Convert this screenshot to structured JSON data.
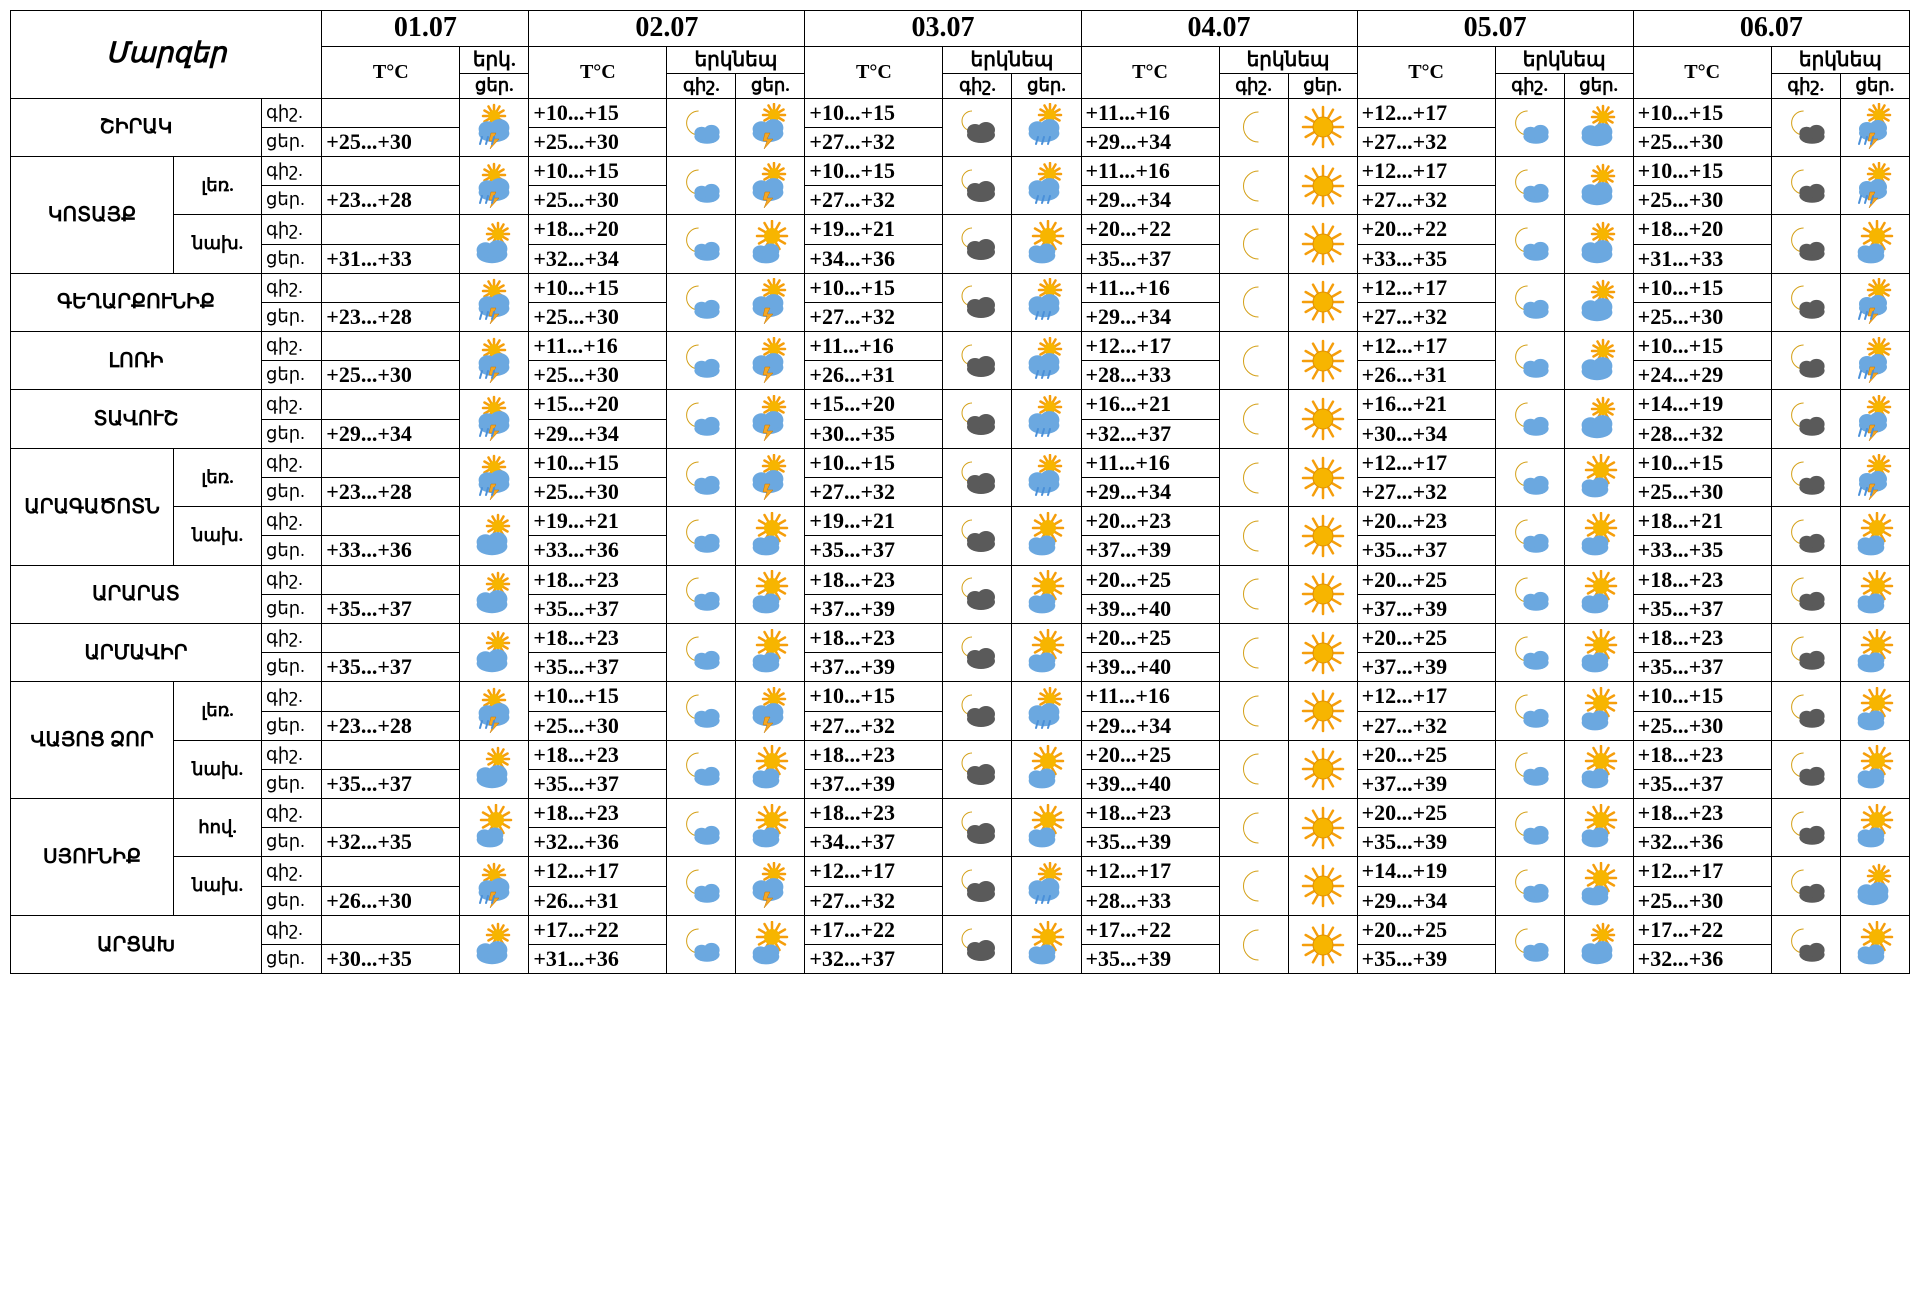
{
  "header": {
    "regions_label": "Մարզեր",
    "dates": [
      "01.07",
      "02.07",
      "03.07",
      "04.07",
      "05.07",
      "06.07"
    ],
    "tc_label": "T°C",
    "erk_short": "երկ.",
    "erk_full": "երկնեպ",
    "sub_night": "գիշ.",
    "sub_day": "ցեր."
  },
  "labels": {
    "tod_night": "գիշ.",
    "tod_day": "ցեր.",
    "sub_mount": "լեռ.",
    "sub_low": "նախ.",
    "sub_valley": "հով."
  },
  "icons": {
    "storm": "storm",
    "moon_cloud": "moon_cloud",
    "sun_storm": "sun_storm",
    "dark_cloud": "dark_cloud",
    "sun_cloud_rain": "sun_cloud_rain",
    "moon": "moon",
    "sun": "sun",
    "sun_cloud": "sun_cloud",
    "moon_dark": "moon_dark",
    "sun_rain": "sun_rain",
    "sun_partly": "sun_partly"
  },
  "colors": {
    "sun": "#f7b500",
    "sun_ray": "#f59e0b",
    "moon": "#f5c542",
    "cloud_light": "#6ba8e0",
    "cloud_dark": "#5a5a5a",
    "cloud_grey": "#888888",
    "bolt": "#f5a623",
    "rain": "#4a90d9"
  },
  "rows": [
    {
      "region": "ՇԻՐԱԿ",
      "sub": null,
      "d": [
        {
          "n": "",
          "dy": "+25...+30",
          "in": "",
          "id": "storm"
        },
        {
          "n": "+10...+15",
          "dy": "+25...+30",
          "in": "moon_cloud",
          "id": "sun_storm"
        },
        {
          "n": "+10...+15",
          "dy": "+27...+32",
          "in": "dark_cloud",
          "id": "sun_cloud_rain"
        },
        {
          "n": "+11...+16",
          "dy": "+29...+34",
          "in": "moon",
          "id": "sun"
        },
        {
          "n": "+12...+17",
          "dy": "+27...+32",
          "in": "moon_cloud",
          "id": "sun_cloud"
        },
        {
          "n": "+10...+15",
          "dy": "+25...+30",
          "in": "moon_dark",
          "id": "sun_rain"
        }
      ]
    },
    {
      "region": "ԿՈՏԱՅՔ",
      "sub": "լեռ.",
      "region_rows": 2,
      "d": [
        {
          "n": "",
          "dy": "+23...+28",
          "in": "",
          "id": "storm"
        },
        {
          "n": "+10...+15",
          "dy": "+25...+30",
          "in": "moon_cloud",
          "id": "sun_storm"
        },
        {
          "n": "+10...+15",
          "dy": "+27...+32",
          "in": "dark_cloud",
          "id": "sun_cloud_rain"
        },
        {
          "n": "+11...+16",
          "dy": "+29...+34",
          "in": "moon",
          "id": "sun"
        },
        {
          "n": "+12...+17",
          "dy": "+27...+32",
          "in": "moon_cloud",
          "id": "sun_cloud"
        },
        {
          "n": "+10...+15",
          "dy": "+25...+30",
          "in": "moon_dark",
          "id": "sun_rain"
        }
      ]
    },
    {
      "region": null,
      "sub": "նախ.",
      "d": [
        {
          "n": "",
          "dy": "+31...+33",
          "in": "",
          "id": "sun_cloud"
        },
        {
          "n": "+18...+20",
          "dy": "+32...+34",
          "in": "moon_cloud",
          "id": "sun_partly"
        },
        {
          "n": "+19...+21",
          "dy": "+34...+36",
          "in": "dark_cloud",
          "id": "sun_partly"
        },
        {
          "n": "+20...+22",
          "dy": "+35...+37",
          "in": "moon",
          "id": "sun"
        },
        {
          "n": "+20...+22",
          "dy": "+33...+35",
          "in": "moon_cloud",
          "id": "sun_cloud"
        },
        {
          "n": "+18...+20",
          "dy": "+31...+33",
          "in": "moon_dark",
          "id": "sun_partly"
        }
      ]
    },
    {
      "region": "ԳԵՂԱՐՔՈՒՆԻՔ",
      "sub": null,
      "d": [
        {
          "n": "",
          "dy": "+23...+28",
          "in": "",
          "id": "storm"
        },
        {
          "n": "+10...+15",
          "dy": "+25...+30",
          "in": "moon_cloud",
          "id": "sun_storm"
        },
        {
          "n": "+10...+15",
          "dy": "+27...+32",
          "in": "dark_cloud",
          "id": "sun_cloud_rain"
        },
        {
          "n": "+11...+16",
          "dy": "+29...+34",
          "in": "moon",
          "id": "sun"
        },
        {
          "n": "+12...+17",
          "dy": "+27...+32",
          "in": "moon_cloud",
          "id": "sun_cloud"
        },
        {
          "n": "+10...+15",
          "dy": "+25...+30",
          "in": "moon_dark",
          "id": "sun_rain"
        }
      ]
    },
    {
      "region": "ԼՈՌԻ",
      "sub": null,
      "d": [
        {
          "n": "",
          "dy": "+25...+30",
          "in": "",
          "id": "storm"
        },
        {
          "n": "+11...+16",
          "dy": "+25...+30",
          "in": "moon_cloud",
          "id": "sun_storm"
        },
        {
          "n": "+11...+16",
          "dy": "+26...+31",
          "in": "dark_cloud",
          "id": "sun_cloud_rain"
        },
        {
          "n": "+12...+17",
          "dy": "+28...+33",
          "in": "moon",
          "id": "sun"
        },
        {
          "n": "+12...+17",
          "dy": "+26...+31",
          "in": "moon_cloud",
          "id": "sun_cloud"
        },
        {
          "n": "+10...+15",
          "dy": "+24...+29",
          "in": "moon_dark",
          "id": "sun_rain"
        }
      ]
    },
    {
      "region": "ՏԱՎՈՒՇ",
      "sub": null,
      "d": [
        {
          "n": "",
          "dy": "+29...+34",
          "in": "",
          "id": "storm"
        },
        {
          "n": "+15...+20",
          "dy": "+29...+34",
          "in": "moon_cloud",
          "id": "sun_storm"
        },
        {
          "n": "+15...+20",
          "dy": "+30...+35",
          "in": "dark_cloud",
          "id": "sun_cloud_rain"
        },
        {
          "n": "+16...+21",
          "dy": "+32...+37",
          "in": "moon",
          "id": "sun"
        },
        {
          "n": "+16...+21",
          "dy": "+30...+34",
          "in": "moon_cloud",
          "id": "sun_cloud"
        },
        {
          "n": "+14...+19",
          "dy": "+28...+32",
          "in": "moon_dark",
          "id": "sun_rain"
        }
      ]
    },
    {
      "region": "ԱՐԱԳԱԾՈՏՆ",
      "sub": "լեռ.",
      "region_rows": 2,
      "d": [
        {
          "n": "",
          "dy": "+23...+28",
          "in": "",
          "id": "storm"
        },
        {
          "n": "+10...+15",
          "dy": "+25...+30",
          "in": "moon_cloud",
          "id": "sun_storm"
        },
        {
          "n": "+10...+15",
          "dy": "+27...+32",
          "in": "dark_cloud",
          "id": "sun_cloud_rain"
        },
        {
          "n": "+11...+16",
          "dy": "+29...+34",
          "in": "moon",
          "id": "sun"
        },
        {
          "n": "+12...+17",
          "dy": "+27...+32",
          "in": "moon_cloud",
          "id": "sun_partly"
        },
        {
          "n": "+10...+15",
          "dy": "+25...+30",
          "in": "moon_dark",
          "id": "sun_rain"
        }
      ]
    },
    {
      "region": null,
      "sub": "նախ.",
      "d": [
        {
          "n": "",
          "dy": "+33...+36",
          "in": "",
          "id": "sun_cloud"
        },
        {
          "n": "+19...+21",
          "dy": "+33...+36",
          "in": "moon_cloud",
          "id": "sun_partly"
        },
        {
          "n": "+19...+21",
          "dy": "+35...+37",
          "in": "dark_cloud",
          "id": "sun_partly"
        },
        {
          "n": "+20...+23",
          "dy": "+37...+39",
          "in": "moon",
          "id": "sun"
        },
        {
          "n": "+20...+23",
          "dy": "+35...+37",
          "in": "moon_cloud",
          "id": "sun_partly"
        },
        {
          "n": "+18...+21",
          "dy": "+33...+35",
          "in": "moon_dark",
          "id": "sun_partly"
        }
      ]
    },
    {
      "region": "ԱՐԱՐԱՏ",
      "sub": null,
      "d": [
        {
          "n": "",
          "dy": "+35...+37",
          "in": "",
          "id": "sun_cloud"
        },
        {
          "n": "+18...+23",
          "dy": "+35...+37",
          "in": "moon_cloud",
          "id": "sun_partly"
        },
        {
          "n": "+18...+23",
          "dy": "+37...+39",
          "in": "dark_cloud",
          "id": "sun_partly"
        },
        {
          "n": "+20...+25",
          "dy": "+39...+40",
          "in": "moon",
          "id": "sun"
        },
        {
          "n": "+20...+25",
          "dy": "+37...+39",
          "in": "moon_cloud",
          "id": "sun_partly"
        },
        {
          "n": "+18...+23",
          "dy": "+35...+37",
          "in": "moon_dark",
          "id": "sun_partly"
        }
      ]
    },
    {
      "region": "ԱՐՄԱՎԻՐ",
      "sub": null,
      "d": [
        {
          "n": "",
          "dy": "+35...+37",
          "in": "",
          "id": "sun_cloud"
        },
        {
          "n": "+18...+23",
          "dy": "+35...+37",
          "in": "moon_cloud",
          "id": "sun_partly"
        },
        {
          "n": "+18...+23",
          "dy": "+37...+39",
          "in": "dark_cloud",
          "id": "sun_partly"
        },
        {
          "n": "+20...+25",
          "dy": "+39...+40",
          "in": "moon",
          "id": "sun"
        },
        {
          "n": "+20...+25",
          "dy": "+37...+39",
          "in": "moon_cloud",
          "id": "sun_partly"
        },
        {
          "n": "+18...+23",
          "dy": "+35...+37",
          "in": "moon_dark",
          "id": "sun_partly"
        }
      ]
    },
    {
      "region": "ՎԱՅՈՑ ՁՈՐ",
      "sub": "լեռ.",
      "region_rows": 2,
      "d": [
        {
          "n": "",
          "dy": "+23...+28",
          "in": "",
          "id": "storm"
        },
        {
          "n": "+10...+15",
          "dy": "+25...+30",
          "in": "moon_cloud",
          "id": "sun_storm"
        },
        {
          "n": "+10...+15",
          "dy": "+27...+32",
          "in": "dark_cloud",
          "id": "sun_cloud_rain"
        },
        {
          "n": "+11...+16",
          "dy": "+29...+34",
          "in": "moon",
          "id": "sun"
        },
        {
          "n": "+12...+17",
          "dy": "+27...+32",
          "in": "moon_cloud",
          "id": "sun_partly"
        },
        {
          "n": "+10...+15",
          "dy": "+25...+30",
          "in": "moon_dark",
          "id": "sun_partly"
        }
      ]
    },
    {
      "region": null,
      "sub": "նախ.",
      "d": [
        {
          "n": "",
          "dy": "+35...+37",
          "in": "",
          "id": "sun_cloud"
        },
        {
          "n": "+18...+23",
          "dy": "+35...+37",
          "in": "moon_cloud",
          "id": "sun_partly"
        },
        {
          "n": "+18...+23",
          "dy": "+37...+39",
          "in": "dark_cloud",
          "id": "sun_partly"
        },
        {
          "n": "+20...+25",
          "dy": "+39...+40",
          "in": "moon",
          "id": "sun"
        },
        {
          "n": "+20...+25",
          "dy": "+37...+39",
          "in": "moon_cloud",
          "id": "sun_partly"
        },
        {
          "n": "+18...+23",
          "dy": "+35...+37",
          "in": "moon_dark",
          "id": "sun_partly"
        }
      ]
    },
    {
      "region": "ՍՅՈՒՆԻՔ",
      "sub": "հով.",
      "region_rows": 2,
      "d": [
        {
          "n": "",
          "dy": "+32...+35",
          "in": "",
          "id": "sun_partly"
        },
        {
          "n": "+18...+23",
          "dy": "+32...+36",
          "in": "moon_cloud",
          "id": "sun_partly"
        },
        {
          "n": "+18...+23",
          "dy": "+34...+37",
          "in": "dark_cloud",
          "id": "sun_partly"
        },
        {
          "n": "+18...+23",
          "dy": "+35...+39",
          "in": "moon",
          "id": "sun"
        },
        {
          "n": "+20...+25",
          "dy": "+35...+39",
          "in": "moon_cloud",
          "id": "sun_partly"
        },
        {
          "n": "+18...+23",
          "dy": "+32...+36",
          "in": "moon_dark",
          "id": "sun_partly"
        }
      ]
    },
    {
      "region": null,
      "sub": "նախ.",
      "d": [
        {
          "n": "",
          "dy": "+26...+30",
          "in": "",
          "id": "storm"
        },
        {
          "n": "+12...+17",
          "dy": "+26...+31",
          "in": "moon_cloud",
          "id": "sun_storm"
        },
        {
          "n": "+12...+17",
          "dy": "+27...+32",
          "in": "dark_cloud",
          "id": "sun_cloud_rain"
        },
        {
          "n": "+12...+17",
          "dy": "+28...+33",
          "in": "moon",
          "id": "sun"
        },
        {
          "n": "+14...+19",
          "dy": "+29...+34",
          "in": "moon_cloud",
          "id": "sun_partly"
        },
        {
          "n": "+12...+17",
          "dy": "+25...+30",
          "in": "moon_dark",
          "id": "sun_cloud"
        }
      ]
    },
    {
      "region": "ԱՐՑԱԽ",
      "sub": null,
      "d": [
        {
          "n": "",
          "dy": "+30...+35",
          "in": "",
          "id": "sun_cloud"
        },
        {
          "n": "+17...+22",
          "dy": "+31...+36",
          "in": "moon_cloud",
          "id": "sun_partly"
        },
        {
          "n": "+17...+22",
          "dy": "+32...+37",
          "in": "dark_cloud",
          "id": "sun_partly"
        },
        {
          "n": "+17...+22",
          "dy": "+35...+39",
          "in": "moon",
          "id": "sun"
        },
        {
          "n": "+20...+25",
          "dy": "+35...+39",
          "in": "moon_cloud",
          "id": "sun_cloud"
        },
        {
          "n": "+17...+22",
          "dy": "+32...+36",
          "in": "moon_dark",
          "id": "sun_partly"
        }
      ]
    }
  ]
}
